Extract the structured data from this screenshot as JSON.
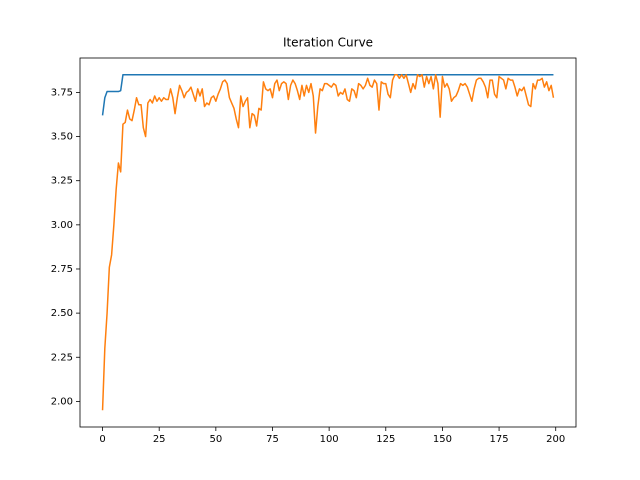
{
  "chart_data": {
    "type": "line",
    "title": "Iteration Curve",
    "x": [
      0,
      1,
      2,
      3,
      4,
      5,
      6,
      7,
      8,
      9,
      10,
      11,
      12,
      13,
      14,
      15,
      16,
      17,
      18,
      19,
      20,
      21,
      22,
      23,
      24,
      25,
      26,
      27,
      28,
      29,
      30,
      31,
      32,
      33,
      34,
      35,
      36,
      37,
      38,
      39,
      40,
      41,
      42,
      43,
      44,
      45,
      46,
      47,
      48,
      49,
      50,
      51,
      52,
      53,
      54,
      55,
      56,
      57,
      58,
      59,
      60,
      61,
      62,
      63,
      64,
      65,
      66,
      67,
      68,
      69,
      70,
      71,
      72,
      73,
      74,
      75,
      76,
      77,
      78,
      79,
      80,
      81,
      82,
      83,
      84,
      85,
      86,
      87,
      88,
      89,
      90,
      91,
      92,
      93,
      94,
      95,
      96,
      97,
      98,
      99,
      100,
      101,
      102,
      103,
      104,
      105,
      106,
      107,
      108,
      109,
      110,
      111,
      112,
      113,
      114,
      115,
      116,
      117,
      118,
      119,
      120,
      121,
      122,
      123,
      124,
      125,
      126,
      127,
      128,
      129,
      130,
      131,
      132,
      133,
      134,
      135,
      136,
      137,
      138,
      139,
      140,
      141,
      142,
      143,
      144,
      145,
      146,
      147,
      148,
      149,
      150,
      151,
      152,
      153,
      154,
      155,
      156,
      157,
      158,
      159,
      160,
      161,
      162,
      163,
      164,
      165,
      166,
      167,
      168,
      169,
      170,
      171,
      172,
      173,
      174,
      175,
      176,
      177,
      178,
      179,
      180,
      181,
      182,
      183,
      184,
      185,
      186,
      187,
      188,
      189,
      190,
      191,
      192,
      193,
      194,
      195,
      196,
      197,
      198,
      199
    ],
    "series": [
      {
        "color": "#1f77b4",
        "values": [
          3.62,
          3.72,
          3.755,
          3.755,
          3.755,
          3.755,
          3.755,
          3.755,
          3.76,
          3.85,
          3.85,
          3.85,
          3.85,
          3.85,
          3.85,
          3.85,
          3.85,
          3.85,
          3.85,
          3.85,
          3.85,
          3.85,
          3.85,
          3.85,
          3.85,
          3.85,
          3.85,
          3.85,
          3.85,
          3.85,
          3.85,
          3.85,
          3.85,
          3.85,
          3.85,
          3.85,
          3.85,
          3.85,
          3.85,
          3.85,
          3.85,
          3.85,
          3.85,
          3.85,
          3.85,
          3.85,
          3.85,
          3.85,
          3.85,
          3.85,
          3.85,
          3.85,
          3.85,
          3.85,
          3.85,
          3.85,
          3.85,
          3.85,
          3.85,
          3.85,
          3.85,
          3.85,
          3.85,
          3.85,
          3.85,
          3.85,
          3.85,
          3.85,
          3.85,
          3.85,
          3.85,
          3.85,
          3.85,
          3.85,
          3.85,
          3.85,
          3.85,
          3.85,
          3.85,
          3.85,
          3.85,
          3.85,
          3.85,
          3.85,
          3.85,
          3.85,
          3.85,
          3.85,
          3.85,
          3.85,
          3.85,
          3.85,
          3.85,
          3.85,
          3.85,
          3.85,
          3.85,
          3.85,
          3.85,
          3.85,
          3.85,
          3.85,
          3.85,
          3.85,
          3.85,
          3.85,
          3.85,
          3.85,
          3.85,
          3.85,
          3.85,
          3.85,
          3.85,
          3.85,
          3.85,
          3.85,
          3.85,
          3.85,
          3.85,
          3.85,
          3.85,
          3.85,
          3.85,
          3.85,
          3.85,
          3.85,
          3.85,
          3.85,
          3.85,
          3.85,
          3.85,
          3.85,
          3.85,
          3.85,
          3.85,
          3.85,
          3.85,
          3.85,
          3.85,
          3.85,
          3.85,
          3.85,
          3.85,
          3.85,
          3.85,
          3.85,
          3.85,
          3.85,
          3.85,
          3.85,
          3.85,
          3.85,
          3.85,
          3.85,
          3.85,
          3.85,
          3.85,
          3.85,
          3.85,
          3.85,
          3.85,
          3.85,
          3.85,
          3.85,
          3.85,
          3.85,
          3.85,
          3.85,
          3.85,
          3.85,
          3.85,
          3.85,
          3.85,
          3.85,
          3.85,
          3.85,
          3.85,
          3.85,
          3.85,
          3.85,
          3.85,
          3.85,
          3.85,
          3.85,
          3.85,
          3.85,
          3.85,
          3.85,
          3.85,
          3.85,
          3.85,
          3.85,
          3.85,
          3.85,
          3.85,
          3.85,
          3.85,
          3.85,
          3.85,
          3.85
        ]
      },
      {
        "color": "#ff7f0e",
        "values": [
          1.95,
          2.3,
          2.5,
          2.76,
          2.83,
          3.0,
          3.2,
          3.35,
          3.3,
          3.57,
          3.58,
          3.65,
          3.6,
          3.59,
          3.65,
          3.72,
          3.68,
          3.68,
          3.55,
          3.5,
          3.69,
          3.71,
          3.69,
          3.73,
          3.7,
          3.72,
          3.7,
          3.72,
          3.71,
          3.71,
          3.77,
          3.72,
          3.63,
          3.72,
          3.79,
          3.76,
          3.72,
          3.75,
          3.76,
          3.78,
          3.74,
          3.7,
          3.77,
          3.73,
          3.77,
          3.67,
          3.69,
          3.68,
          3.72,
          3.73,
          3.7,
          3.74,
          3.77,
          3.81,
          3.82,
          3.8,
          3.72,
          3.69,
          3.66,
          3.6,
          3.55,
          3.73,
          3.67,
          3.7,
          3.72,
          3.55,
          3.63,
          3.62,
          3.56,
          3.66,
          3.65,
          3.81,
          3.77,
          3.76,
          3.77,
          3.72,
          3.8,
          3.82,
          3.76,
          3.8,
          3.81,
          3.8,
          3.71,
          3.79,
          3.82,
          3.8,
          3.76,
          3.71,
          3.79,
          3.73,
          3.79,
          3.75,
          3.8,
          3.73,
          3.52,
          3.67,
          3.77,
          3.76,
          3.8,
          3.8,
          3.79,
          3.78,
          3.8,
          3.79,
          3.73,
          3.75,
          3.74,
          3.77,
          3.71,
          3.7,
          3.77,
          3.76,
          3.72,
          3.8,
          3.79,
          3.77,
          3.79,
          3.83,
          3.79,
          3.78,
          3.82,
          3.8,
          3.65,
          3.81,
          3.8,
          3.8,
          3.74,
          3.72,
          3.82,
          3.85,
          3.85,
          3.83,
          3.85,
          3.83,
          3.85,
          3.8,
          3.75,
          3.8,
          3.77,
          3.85,
          3.84,
          3.85,
          3.78,
          3.84,
          3.8,
          3.84,
          3.77,
          3.85,
          3.8,
          3.61,
          3.84,
          3.78,
          3.8,
          3.77,
          3.7,
          3.72,
          3.73,
          3.76,
          3.8,
          3.79,
          3.8,
          3.78,
          3.74,
          3.7,
          3.77,
          3.82,
          3.83,
          3.83,
          3.81,
          3.78,
          3.72,
          3.82,
          3.82,
          3.74,
          3.72,
          3.84,
          3.83,
          3.82,
          3.77,
          3.83,
          3.82,
          3.82,
          3.78,
          3.73,
          3.77,
          3.76,
          3.78,
          3.73,
          3.68,
          3.67,
          3.8,
          3.77,
          3.82,
          3.82,
          3.83,
          3.78,
          3.81,
          3.76,
          3.79,
          3.72
        ]
      }
    ],
    "xlim": [
      -9.95,
      208.95
    ],
    "xticks": [
      0,
      25,
      50,
      75,
      100,
      125,
      150,
      175,
      200
    ],
    "ylim": [
      1.855,
      3.945
    ],
    "yticks": [
      {
        "value": 2,
        "label": "2.00"
      },
      {
        "value": 2.25,
        "label": "2.25"
      },
      {
        "value": 2.5,
        "label": "2.50"
      },
      {
        "value": 2.75,
        "label": "2.75"
      },
      {
        "value": 3,
        "label": "3.00"
      },
      {
        "value": 3.25,
        "label": "3.25"
      },
      {
        "value": 3.5,
        "label": "3.50"
      },
      {
        "value": 3.75,
        "label": "3.75"
      }
    ],
    "grid": false
  }
}
